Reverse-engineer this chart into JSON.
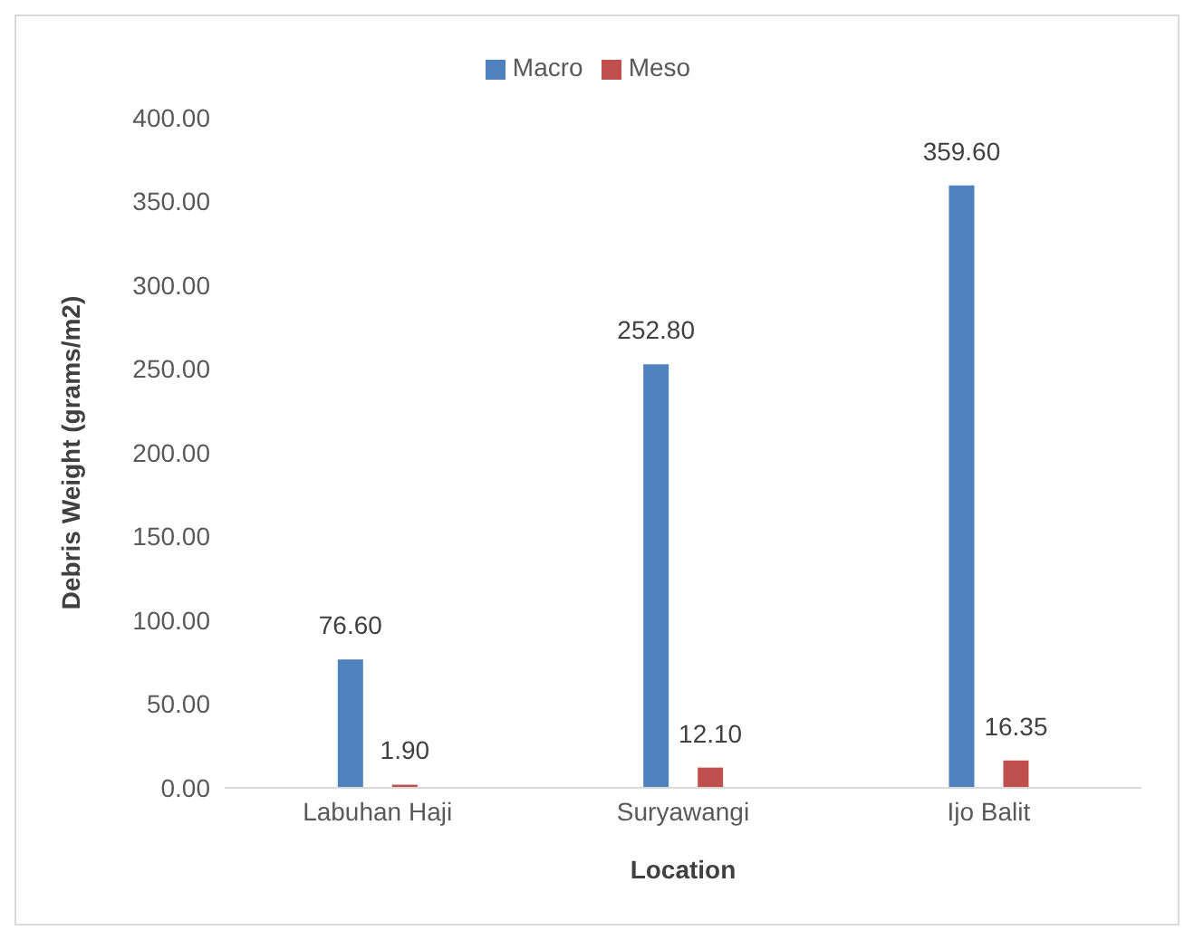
{
  "chart_data": {
    "type": "bar",
    "xlabel": "Location",
    "ylabel": "Debris Weight (grams/m2)",
    "categories": [
      "Labuhan Haji",
      "Suryawangi",
      "Ijo Balit"
    ],
    "series": [
      {
        "name": "Macro",
        "color": "#4f81bd",
        "values": [
          76.6,
          252.8,
          359.6
        ],
        "value_labels": [
          "76.60",
          "252.80",
          "359.60"
        ]
      },
      {
        "name": "Meso",
        "color": "#c0504d",
        "values": [
          1.9,
          12.1,
          16.35
        ],
        "value_labels": [
          "1.90",
          "12.10",
          "16.35"
        ]
      }
    ],
    "ylim": [
      0,
      400
    ],
    "yticks": [
      {
        "value": 0,
        "label": "0.00"
      },
      {
        "value": 50,
        "label": "50.00"
      },
      {
        "value": 100,
        "label": "100.00"
      },
      {
        "value": 150,
        "label": "150.00"
      },
      {
        "value": 200,
        "label": "200.00"
      },
      {
        "value": 250,
        "label": "250.00"
      },
      {
        "value": 300,
        "label": "300.00"
      },
      {
        "value": 350,
        "label": "350.00"
      },
      {
        "value": 400,
        "label": "400.00"
      }
    ],
    "grid": false,
    "legend": "top"
  }
}
